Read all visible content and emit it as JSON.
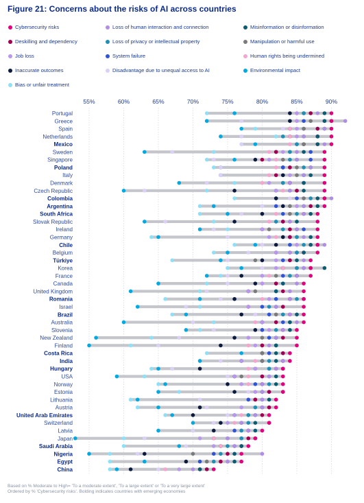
{
  "title": "Figure 21: Concerns about the risks of AI across countries",
  "legend": [
    {
      "label": "Cybersecurity risks",
      "color": "#e4007c"
    },
    {
      "label": "Loss of human interaction and connection",
      "color": "#b18ee6"
    },
    {
      "label": "Misinformation or disinformation",
      "color": "#0b5c73"
    },
    {
      "label": "Deskilling and dependency",
      "color": "#a10052"
    },
    {
      "label": "Loss of privacy or intellectual property",
      "color": "#1f8fb5"
    },
    {
      "label": "Manipulation or harmful use",
      "color": "#7b7b7b"
    },
    {
      "label": "Job loss",
      "color": "#b897ec"
    },
    {
      "label": "System failure",
      "color": "#2f55d4"
    },
    {
      "label": "Human rights being undermined",
      "color": "#f4a6cf"
    },
    {
      "label": "Inaccurate outcomes",
      "color": "#0c1a3e"
    },
    {
      "label": "Disadvantage due to unequal access to AI",
      "color": "#dcd0f6"
    },
    {
      "label": "Environmental impact",
      "color": "#00a9e0"
    },
    {
      "label": "Bias or unfair treatment",
      "color": "#8fe0f7"
    }
  ],
  "chart_data": {
    "type": "scatter",
    "x_ticks": [
      "55%",
      "60%",
      "65%",
      "70%",
      "75%",
      "80%",
      "85%",
      "90%"
    ],
    "xlim": [
      52,
      93
    ],
    "grid": true,
    "series_order": [
      "Cybersecurity risks",
      "Loss of human interaction and connection",
      "Misinformation or disinformation",
      "Deskilling and dependency",
      "Loss of privacy or intellectual property",
      "Manipulation or harmful use",
      "Job loss",
      "System failure",
      "Human rights being undermined",
      "Inaccurate outcomes",
      "Disadvantage due to unequal access to AI",
      "Environmental impact",
      "Bias or unfair treatment"
    ],
    "countries": [
      {
        "name": "Portugal",
        "bold": false,
        "values": [
          90,
          88,
          89,
          87,
          86,
          87,
          85,
          86,
          85,
          84,
          85,
          76,
          72
        ]
      },
      {
        "name": "Greece",
        "bold": false,
        "values": [
          90,
          92,
          89,
          90,
          89,
          87,
          85,
          86,
          85,
          84,
          77,
          72,
          72
        ]
      },
      {
        "name": "Spain",
        "bold": false,
        "values": [
          90,
          89,
          89,
          88,
          88,
          86,
          85,
          86,
          84,
          84,
          83,
          77,
          79
        ]
      },
      {
        "name": "Netherlands",
        "bold": false,
        "values": [
          90,
          86,
          88,
          88,
          83,
          86,
          85,
          88,
          84,
          84,
          77,
          74,
          82
        ]
      },
      {
        "name": "Mexico",
        "bold": true,
        "values": [
          90,
          89,
          88,
          88,
          85,
          86,
          85,
          85,
          84,
          86,
          77,
          79,
          77
        ]
      },
      {
        "name": "Sweden",
        "bold": false,
        "values": [
          89,
          85,
          86,
          82,
          84,
          84,
          83,
          87,
          81,
          82,
          67,
          63,
          73
        ]
      },
      {
        "name": "Singapore",
        "bold": false,
        "values": [
          89,
          85,
          85,
          80,
          84,
          83,
          81,
          87,
          82,
          79,
          73,
          76,
          72
        ]
      },
      {
        "name": "Poland",
        "bold": true,
        "values": [
          89,
          87,
          87,
          84,
          86,
          85,
          84,
          83,
          82,
          83,
          74,
          74,
          73
        ]
      },
      {
        "name": "Italy",
        "bold": false,
        "values": [
          89,
          86,
          87,
          82,
          86,
          85,
          84,
          86,
          81,
          83,
          74,
          74,
          74
        ]
      },
      {
        "name": "Denmark",
        "bold": false,
        "values": [
          89,
          84,
          86,
          84,
          83,
          83,
          81,
          86,
          80,
          84,
          72,
          68,
          76
        ]
      },
      {
        "name": "Czech Republic",
        "bold": false,
        "values": [
          89,
          84,
          86,
          85,
          84,
          85,
          82,
          82,
          83,
          76,
          63,
          60,
          72
        ]
      },
      {
        "name": "Colombia",
        "bold": true,
        "values": [
          89,
          90,
          88,
          89,
          87,
          86,
          86,
          85,
          87,
          82,
          84,
          82,
          76
        ]
      },
      {
        "name": "Argentina",
        "bold": true,
        "values": [
          89,
          86,
          88,
          87,
          86,
          84,
          85,
          82,
          85,
          83,
          80,
          73,
          71
        ]
      },
      {
        "name": "South Africa",
        "bold": true,
        "values": [
          88,
          86,
          87,
          86,
          85,
          84,
          86,
          83,
          82,
          80,
          77,
          75,
          71
        ]
      },
      {
        "name": "Slovak Republic",
        "bold": false,
        "values": [
          88,
          84,
          85,
          83,
          82,
          84,
          82,
          83,
          81,
          76,
          66,
          63,
          73
        ]
      },
      {
        "name": "Ireland",
        "bold": false,
        "values": [
          88,
          85,
          85,
          84,
          83,
          81,
          80,
          86,
          80,
          80,
          73,
          71,
          75
        ]
      },
      {
        "name": "Germany",
        "bold": false,
        "values": [
          88,
          86,
          87,
          84,
          85,
          85,
          81,
          84,
          82,
          83,
          75,
          65,
          64
        ]
      },
      {
        "name": "Chile",
        "bold": true,
        "values": [
          88,
          89,
          87,
          88,
          86,
          87,
          85,
          84,
          85,
          82,
          80,
          79,
          76
        ]
      },
      {
        "name": "Belgium",
        "bold": false,
        "values": [
          88,
          84,
          86,
          86,
          85,
          84,
          82,
          85,
          82,
          82,
          78,
          75,
          73
        ]
      },
      {
        "name": "Türkiye",
        "bold": true,
        "values": [
          87,
          86,
          85,
          84,
          84,
          79,
          82,
          83,
          83,
          80,
          75,
          74,
          67
        ]
      },
      {
        "name": "Korea",
        "bold": false,
        "values": [
          87,
          86,
          89,
          87,
          85,
          85,
          82,
          86,
          83,
          83,
          80,
          77,
          75
        ]
      },
      {
        "name": "France",
        "bold": false,
        "values": [
          87,
          85,
          85,
          85,
          84,
          82,
          80,
          83,
          81,
          77,
          75,
          72,
          74
        ]
      },
      {
        "name": "Canada",
        "bold": false,
        "values": [
          86,
          85,
          83,
          82,
          82,
          82,
          80,
          83,
          80,
          79,
          75,
          65,
          72
        ]
      },
      {
        "name": "United Kingdom",
        "bold": false,
        "values": [
          86,
          84,
          82,
          83,
          82,
          79,
          78,
          82,
          79,
          78,
          72,
          61,
          71
        ]
      },
      {
        "name": "Romania",
        "bold": true,
        "values": [
          86,
          84,
          86,
          84,
          85,
          84,
          81,
          82,
          80,
          76,
          74,
          71,
          66
        ]
      },
      {
        "name": "Israel",
        "bold": false,
        "values": [
          86,
          82,
          82,
          83,
          81,
          83,
          78,
          80,
          78,
          78,
          69,
          62,
          71
        ]
      },
      {
        "name": "Brazil",
        "bold": true,
        "values": [
          86,
          84,
          85,
          84,
          83,
          82,
          83,
          81,
          82,
          77,
          79,
          69,
          67
        ]
      },
      {
        "name": "Australia",
        "bold": false,
        "values": [
          86,
          85,
          84,
          82,
          84,
          82,
          80,
          83,
          79,
          80,
          70,
          60,
          73
        ]
      },
      {
        "name": "Slovenia",
        "bold": false,
        "values": [
          85,
          83,
          84,
          83,
          82,
          83,
          81,
          80,
          80,
          79,
          73,
          69,
          71
        ]
      },
      {
        "name": "New Zealand",
        "bold": false,
        "values": [
          85,
          82,
          82,
          83,
          82,
          80,
          78,
          81,
          78,
          76,
          68,
          56,
          64
        ]
      },
      {
        "name": "Finland",
        "bold": false,
        "values": [
          85,
          81,
          82,
          80,
          82,
          80,
          79,
          82,
          78,
          74,
          65,
          55,
          61
        ]
      },
      {
        "name": "Costa Rica",
        "bold": true,
        "values": [
          84,
          84,
          82,
          83,
          83,
          80,
          83,
          81,
          81,
          80,
          81,
          77,
          72
        ]
      },
      {
        "name": "India",
        "bold": true,
        "values": [
          84,
          83,
          82,
          83,
          81,
          80,
          77,
          80,
          79,
          77,
          74,
          71,
          71
        ]
      },
      {
        "name": "Hungary",
        "bold": true,
        "values": [
          83,
          82,
          83,
          82,
          81,
          81,
          79,
          79,
          78,
          71,
          67,
          65,
          64
        ]
      },
      {
        "name": "USA",
        "bold": false,
        "values": [
          83,
          81,
          82,
          80,
          81,
          77,
          76,
          80,
          78,
          76,
          75,
          59,
          63
        ]
      },
      {
        "name": "Norway",
        "bold": false,
        "values": [
          83,
          80,
          82,
          80,
          81,
          80,
          77,
          79,
          78,
          75,
          75,
          66,
          65
        ]
      },
      {
        "name": "Estonia",
        "bold": false,
        "values": [
          83,
          80,
          83,
          81,
          80,
          80,
          79,
          81,
          79,
          76,
          78,
          65,
          68
        ]
      },
      {
        "name": "Lithuania",
        "bold": false,
        "values": [
          82,
          80,
          81,
          79,
          80,
          79,
          80,
          78,
          78,
          79,
          71,
          62,
          61
        ]
      },
      {
        "name": "Austria",
        "bold": false,
        "values": [
          82,
          80,
          80,
          81,
          79,
          81,
          77,
          80,
          79,
          71,
          72,
          65,
          62
        ]
      },
      {
        "name": "United Arab Emirates",
        "bold": true,
        "values": [
          81,
          79,
          79,
          80,
          78,
          78,
          76,
          76,
          77,
          70,
          75,
          67,
          66
        ]
      },
      {
        "name": "Switzerland",
        "bold": false,
        "values": [
          81,
          77,
          79,
          81,
          78,
          77,
          75,
          77,
          76,
          74,
          73,
          70,
          74
        ]
      },
      {
        "name": "Latvia",
        "bold": false,
        "values": [
          80,
          78,
          79,
          78,
          77,
          78,
          77,
          76,
          76,
          73,
          70,
          65,
          70
        ]
      },
      {
        "name": "Japan",
        "bold": false,
        "values": [
          79,
          75,
          79,
          78,
          77,
          75,
          71,
          77,
          73,
          73,
          63,
          53,
          60
        ]
      },
      {
        "name": "Saudi Arabia",
        "bold": true,
        "values": [
          78,
          76,
          77,
          77,
          75,
          77,
          73,
          76,
          74,
          74,
          69,
          68,
          60
        ]
      },
      {
        "name": "Nigeria",
        "bold": true,
        "values": [
          77,
          80,
          76,
          75,
          74,
          70,
          76,
          73,
          75,
          63,
          62,
          55,
          58
        ]
      },
      {
        "name": "Egypt",
        "bold": true,
        "values": [
          77,
          75,
          76,
          74,
          73,
          72,
          75,
          71,
          74,
          69,
          72,
          63,
          58
        ]
      },
      {
        "name": "China",
        "bold": true,
        "values": [
          73,
          70,
          71,
          72,
          72,
          71,
          68,
          71,
          66,
          61,
          65,
          59,
          58
        ]
      }
    ]
  },
  "footnote": [
    "Based on % Moderate to High= 'To a moderate extent', 'To a large extent' or 'To a very large extent'",
    "Ordered by % 'Cybersecurity risks'. Bolding indicates countries with emerging economies"
  ]
}
